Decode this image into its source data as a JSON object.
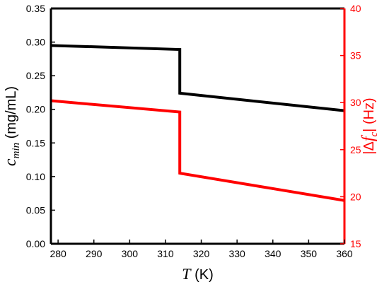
{
  "chart_data": {
    "type": "line",
    "x_axis": {
      "label_var": "T",
      "label_unit": " (K)",
      "lim": [
        278,
        360
      ],
      "ticks": [
        280,
        290,
        300,
        310,
        320,
        330,
        340,
        350,
        360
      ],
      "tick_labels": [
        "280",
        "290",
        "300",
        "310",
        "320",
        "330",
        "340",
        "350",
        "360"
      ]
    },
    "y_left": {
      "label_var": "c",
      "label_sub": "min",
      "label_unit": " (mg/mL)",
      "color": "#000000",
      "lim": [
        0,
        0.35
      ],
      "ticks": [
        0,
        0.05,
        0.1,
        0.15,
        0.2,
        0.25,
        0.3,
        0.35
      ],
      "tick_labels": [
        "0.00",
        "0.05",
        "0.10",
        "0.15",
        "0.20",
        "0.25",
        "0.30",
        "0.35"
      ]
    },
    "y_right": {
      "label_pre": "|Δ",
      "label_var": "f",
      "label_sub": "c",
      "label_post": "| (Hz)",
      "color": "#ff0000",
      "lim": [
        15,
        40
      ],
      "ticks": [
        15,
        20,
        25,
        30,
        35,
        40
      ],
      "tick_labels": [
        "15",
        "20",
        "25",
        "30",
        "35",
        "40"
      ]
    },
    "series": [
      {
        "axis": "left",
        "color": "#000000",
        "points": [
          [
            278,
            0.295
          ],
          [
            314,
            0.289
          ],
          [
            314,
            0.224
          ],
          [
            360,
            0.198
          ]
        ]
      },
      {
        "axis": "right",
        "color": "#ff0000",
        "points": [
          [
            278,
            30.2
          ],
          [
            314,
            29.0
          ],
          [
            314,
            22.5
          ],
          [
            360,
            19.6
          ]
        ]
      }
    ],
    "grid": false,
    "legend": "none"
  }
}
